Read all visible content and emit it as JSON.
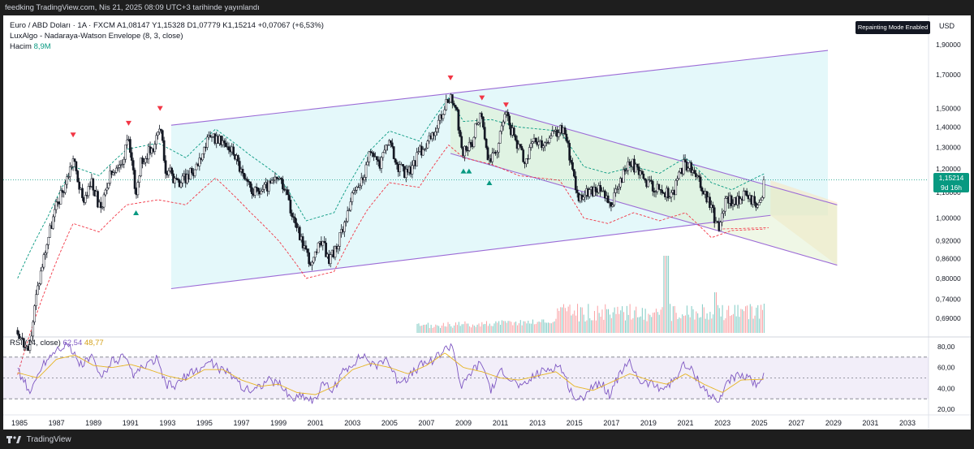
{
  "header": {
    "publish_line": "feedking TradingView.com, Nis 21, 2025 08:09 UTC+3 tarihinde yayınlandı"
  },
  "legend": {
    "line1": "Euro / ABD Doları · 1A · FXCM  A1,08147  Y1,15328  D1,07779  K1,15214  +0,07067 (+6,53%)",
    "line2": "LuxAlgo - Nadaraya-Watson Envelope (8, 3, close)",
    "volume_label": "Hacim",
    "volume_value": "8,9M"
  },
  "badge": "Repainting Mode Enabled",
  "currency": "USD",
  "price_tag": {
    "price": "1,15214",
    "countdown": "9d 16h"
  },
  "rsi_legend": {
    "label": "RSI (14, close)",
    "rsi": "62,54",
    "ma": "48,77"
  },
  "footer": {
    "brand": "TradingView"
  },
  "colors": {
    "up": "#089981",
    "down": "#f23645",
    "channel": "#9c6bd6",
    "channel_fill": "#b2ebf2",
    "desc_fill": "#dcedc8",
    "proj_fill": "#ffe0b2",
    "upper_env": "#089981",
    "lower_env": "#f23645",
    "rsi": "#7e57c2",
    "rsi_ma": "#e6b422"
  },
  "chart_data": [
    {
      "type": "candlestick",
      "title": "Euro / ABD Doları · 1A · FXCM",
      "y_scale": "log",
      "ylim": [
        0.62,
        2.0
      ],
      "y_ticks": [
        "1,90000",
        "1,70000",
        "1,50000",
        "1,40000",
        "1,30000",
        "1,20000",
        "1,10000",
        "1,00000",
        "0,92000",
        "0,86000",
        "0,80000",
        "0,74000",
        "0,69000"
      ],
      "x_ticks": [
        "1985",
        "1987",
        "1989",
        "1991",
        "1993",
        "1995",
        "1997",
        "1999",
        "2001",
        "2003",
        "2005",
        "2007",
        "2009",
        "2011",
        "2013",
        "2015",
        "2017",
        "2019",
        "2021",
        "2023",
        "2025",
        "2027",
        "2029",
        "2031",
        "2033"
      ],
      "price_path": [
        [
          1984.9,
          0.66
        ],
        [
          1985.5,
          0.6
        ],
        [
          1985.9,
          0.75
        ],
        [
          1986.5,
          0.92
        ],
        [
          1987.0,
          1.05
        ],
        [
          1987.4,
          1.12
        ],
        [
          1987.9,
          1.25
        ],
        [
          1988.4,
          1.07
        ],
        [
          1988.9,
          1.14
        ],
        [
          1989.4,
          1.02
        ],
        [
          1989.9,
          1.17
        ],
        [
          1990.4,
          1.2
        ],
        [
          1990.9,
          1.33
        ],
        [
          1991.3,
          1.1
        ],
        [
          1991.6,
          1.24
        ],
        [
          1992.2,
          1.3
        ],
        [
          1992.6,
          1.4
        ],
        [
          1992.9,
          1.2
        ],
        [
          1993.6,
          1.14
        ],
        [
          1994.4,
          1.19
        ],
        [
          1995.0,
          1.3
        ],
        [
          1995.4,
          1.36
        ],
        [
          1995.9,
          1.32
        ],
        [
          1996.6,
          1.28
        ],
        [
          1997.2,
          1.14
        ],
        [
          1997.8,
          1.1
        ],
        [
          1998.5,
          1.13
        ],
        [
          1999.0,
          1.16
        ],
        [
          1999.6,
          1.05
        ],
        [
          2000.2,
          0.93
        ],
        [
          2000.8,
          0.84
        ],
        [
          2001.3,
          0.92
        ],
        [
          2001.7,
          0.86
        ],
        [
          2002.2,
          0.9
        ],
        [
          2002.6,
          1.0
        ],
        [
          2003.1,
          1.1
        ],
        [
          2003.5,
          1.15
        ],
        [
          2004.0,
          1.28
        ],
        [
          2004.5,
          1.22
        ],
        [
          2004.9,
          1.34
        ],
        [
          2005.5,
          1.2
        ],
        [
          2006.0,
          1.18
        ],
        [
          2006.8,
          1.3
        ],
        [
          2007.3,
          1.35
        ],
        [
          2007.8,
          1.46
        ],
        [
          2008.3,
          1.58
        ],
        [
          2008.6,
          1.5
        ],
        [
          2008.9,
          1.27
        ],
        [
          2009.4,
          1.3
        ],
        [
          2009.9,
          1.48
        ],
        [
          2010.4,
          1.22
        ],
        [
          2010.9,
          1.32
        ],
        [
          2011.3,
          1.46
        ],
        [
          2011.8,
          1.33
        ],
        [
          2012.3,
          1.23
        ],
        [
          2012.8,
          1.32
        ],
        [
          2013.4,
          1.31
        ],
        [
          2014.0,
          1.38
        ],
        [
          2014.4,
          1.39
        ],
        [
          2014.9,
          1.2
        ],
        [
          2015.2,
          1.08
        ],
        [
          2015.8,
          1.1
        ],
        [
          2016.3,
          1.12
        ],
        [
          2016.9,
          1.04
        ],
        [
          2017.4,
          1.13
        ],
        [
          2018.0,
          1.24
        ],
        [
          2018.6,
          1.16
        ],
        [
          2019.2,
          1.13
        ],
        [
          2019.8,
          1.1
        ],
        [
          2020.3,
          1.09
        ],
        [
          2020.9,
          1.22
        ],
        [
          2021.3,
          1.2
        ],
        [
          2021.8,
          1.13
        ],
        [
          2022.3,
          1.05
        ],
        [
          2022.8,
          0.96
        ],
        [
          2023.2,
          1.08
        ],
        [
          2023.7,
          1.06
        ],
        [
          2024.2,
          1.09
        ],
        [
          2024.8,
          1.06
        ],
        [
          2025.0,
          1.035
        ],
        [
          2025.2,
          1.08
        ],
        [
          2025.3,
          1.152
        ]
      ],
      "upper_envelope": [
        [
          1984.9,
          0.8
        ],
        [
          1986.5,
          1.0
        ],
        [
          1987.9,
          1.21
        ],
        [
          1989.3,
          1.17
        ],
        [
          1990.8,
          1.29
        ],
        [
          1992.5,
          1.32
        ],
        [
          1994.0,
          1.25
        ],
        [
          1995.6,
          1.39
        ],
        [
          1997.5,
          1.26
        ],
        [
          1999.0,
          1.17
        ],
        [
          2000.5,
          0.99
        ],
        [
          2002.0,
          1.02
        ],
        [
          2003.8,
          1.27
        ],
        [
          2005.0,
          1.38
        ],
        [
          2006.6,
          1.33
        ],
        [
          2008.2,
          1.56
        ],
        [
          2009.0,
          1.43
        ],
        [
          2010.5,
          1.44
        ],
        [
          2012.0,
          1.4
        ],
        [
          2014.2,
          1.38
        ],
        [
          2015.5,
          1.21
        ],
        [
          2016.8,
          1.18
        ],
        [
          2018.2,
          1.21
        ],
        [
          2019.6,
          1.18
        ],
        [
          2021.0,
          1.25
        ],
        [
          2022.4,
          1.14
        ],
        [
          2023.5,
          1.11
        ],
        [
          2025.3,
          1.18
        ]
      ],
      "lower_envelope": [
        [
          1984.9,
          0.56
        ],
        [
          1986.5,
          0.78
        ],
        [
          1987.9,
          0.98
        ],
        [
          1989.3,
          0.95
        ],
        [
          1990.8,
          1.05
        ],
        [
          1992.5,
          1.07
        ],
        [
          1994.0,
          1.05
        ],
        [
          1995.6,
          1.16
        ],
        [
          1997.5,
          1.02
        ],
        [
          1999.0,
          0.92
        ],
        [
          2000.5,
          0.8
        ],
        [
          2002.0,
          0.82
        ],
        [
          2003.8,
          1.03
        ],
        [
          2005.0,
          1.14
        ],
        [
          2006.6,
          1.12
        ],
        [
          2008.2,
          1.31
        ],
        [
          2009.0,
          1.25
        ],
        [
          2010.5,
          1.22
        ],
        [
          2012.0,
          1.17
        ],
        [
          2014.2,
          1.15
        ],
        [
          2015.5,
          1.0
        ],
        [
          2016.8,
          0.98
        ],
        [
          2018.2,
          1.02
        ],
        [
          2019.6,
          0.99
        ],
        [
          2021.0,
          1.02
        ],
        [
          2022.4,
          0.93
        ],
        [
          2023.5,
          0.955
        ],
        [
          2025.3,
          0.96
        ]
      ],
      "rising_channel": {
        "lower": [
          [
            1993.2,
            0.77
          ],
          [
            2025.6,
            1.01
          ]
        ],
        "upper": [
          [
            1993.2,
            1.41
          ],
          [
            2028.7,
            1.86
          ]
        ]
      },
      "falling_channel": {
        "upper": [
          [
            2008.3,
            1.57
          ],
          [
            2029.2,
            1.05
          ]
        ],
        "lower": [
          [
            2008.3,
            1.27
          ],
          [
            2029.2,
            0.84
          ]
        ]
      },
      "sell_signals": [
        [
          1987.9,
          1.36
        ],
        [
          1990.9,
          1.42
        ],
        [
          1992.6,
          1.5
        ],
        [
          2008.3,
          1.68
        ],
        [
          2010.0,
          1.56
        ],
        [
          2011.3,
          1.52
        ]
      ],
      "buy_signals": [
        [
          1991.3,
          1.02
        ],
        [
          2009.0,
          1.19
        ],
        [
          2009.3,
          1.19
        ],
        [
          2010.4,
          1.14
        ]
      ],
      "volume": {
        "label": "Hacim",
        "last": "8,9M",
        "start_year": 2006.5
      }
    },
    {
      "type": "line",
      "title": "RSI (14, close)",
      "ylim": [
        15,
        90
      ],
      "y_ticks": [
        "80,00",
        "60,00",
        "40,00",
        "20,00"
      ],
      "bands": [
        30,
        50,
        70
      ],
      "series": [
        {
          "name": "RSI",
          "values": [
            [
              1984.9,
              58
            ],
            [
              1985.6,
              35
            ],
            [
              1986.2,
              62
            ],
            [
              1987.0,
              78
            ],
            [
              1987.6,
              82
            ],
            [
              1988.3,
              62
            ],
            [
              1988.9,
              70
            ],
            [
              1989.4,
              50
            ],
            [
              1989.9,
              65
            ],
            [
              1990.6,
              70
            ],
            [
              1991.2,
              52
            ],
            [
              1991.7,
              60
            ],
            [
              1992.4,
              68
            ],
            [
              1992.9,
              44
            ],
            [
              1993.4,
              42
            ],
            [
              1994.0,
              52
            ],
            [
              1994.7,
              58
            ],
            [
              1995.3,
              66
            ],
            [
              1995.9,
              58
            ],
            [
              1996.6,
              52
            ],
            [
              1997.2,
              38
            ],
            [
              1997.8,
              40
            ],
            [
              1998.4,
              48
            ],
            [
              1999.1,
              44
            ],
            [
              1999.7,
              30
            ],
            [
              2000.3,
              34
            ],
            [
              2000.9,
              28
            ],
            [
              2001.4,
              44
            ],
            [
              2001.9,
              38
            ],
            [
              2002.5,
              56
            ],
            [
              2003.0,
              64
            ],
            [
              2003.6,
              72
            ],
            [
              2004.2,
              60
            ],
            [
              2004.8,
              70
            ],
            [
              2005.4,
              48
            ],
            [
              2006.0,
              50
            ],
            [
              2006.7,
              62
            ],
            [
              2007.4,
              68
            ],
            [
              2007.9,
              76
            ],
            [
              2008.4,
              82
            ],
            [
              2008.9,
              40
            ],
            [
              2009.5,
              58
            ],
            [
              2010.0,
              64
            ],
            [
              2010.5,
              38
            ],
            [
              2011.1,
              58
            ],
            [
              2011.6,
              48
            ],
            [
              2012.2,
              40
            ],
            [
              2012.8,
              52
            ],
            [
              2013.5,
              58
            ],
            [
              2014.2,
              62
            ],
            [
              2014.8,
              38
            ],
            [
              2015.2,
              26
            ],
            [
              2015.8,
              40
            ],
            [
              2016.4,
              46
            ],
            [
              2016.9,
              34
            ],
            [
              2017.5,
              56
            ],
            [
              2018.0,
              64
            ],
            [
              2018.6,
              46
            ],
            [
              2019.2,
              44
            ],
            [
              2019.8,
              40
            ],
            [
              2020.3,
              46
            ],
            [
              2020.9,
              62
            ],
            [
              2021.4,
              56
            ],
            [
              2021.9,
              42
            ],
            [
              2022.4,
              32
            ],
            [
              2022.8,
              26
            ],
            [
              2023.2,
              46
            ],
            [
              2023.7,
              52
            ],
            [
              2024.2,
              50
            ],
            [
              2024.8,
              46
            ],
            [
              2025.0,
              40
            ],
            [
              2025.3,
              62.5
            ]
          ]
        },
        {
          "name": "MA",
          "values": [
            [
              1984.9,
              55
            ],
            [
              1986.0,
              50
            ],
            [
              1987.0,
              68
            ],
            [
              1988.0,
              72
            ],
            [
              1989.0,
              62
            ],
            [
              1990.0,
              60
            ],
            [
              1991.0,
              63
            ],
            [
              1992.0,
              58
            ],
            [
              1993.0,
              52
            ],
            [
              1994.0,
              48
            ],
            [
              1995.0,
              58
            ],
            [
              1996.0,
              58
            ],
            [
              1997.0,
              48
            ],
            [
              1998.0,
              42
            ],
            [
              1999.0,
              44
            ],
            [
              2000.0,
              36
            ],
            [
              2001.0,
              34
            ],
            [
              2002.0,
              42
            ],
            [
              2003.0,
              58
            ],
            [
              2004.0,
              64
            ],
            [
              2005.0,
              60
            ],
            [
              2006.0,
              54
            ],
            [
              2007.0,
              62
            ],
            [
              2008.0,
              74
            ],
            [
              2009.0,
              60
            ],
            [
              2010.0,
              56
            ],
            [
              2011.0,
              50
            ],
            [
              2012.0,
              48
            ],
            [
              2013.0,
              52
            ],
            [
              2014.0,
              56
            ],
            [
              2015.0,
              42
            ],
            [
              2016.0,
              38
            ],
            [
              2017.0,
              46
            ],
            [
              2018.0,
              54
            ],
            [
              2019.0,
              48
            ],
            [
              2020.0,
              44
            ],
            [
              2021.0,
              54
            ],
            [
              2022.0,
              44
            ],
            [
              2023.0,
              36
            ],
            [
              2024.0,
              48
            ],
            [
              2025.3,
              48.8
            ]
          ]
        }
      ]
    }
  ]
}
